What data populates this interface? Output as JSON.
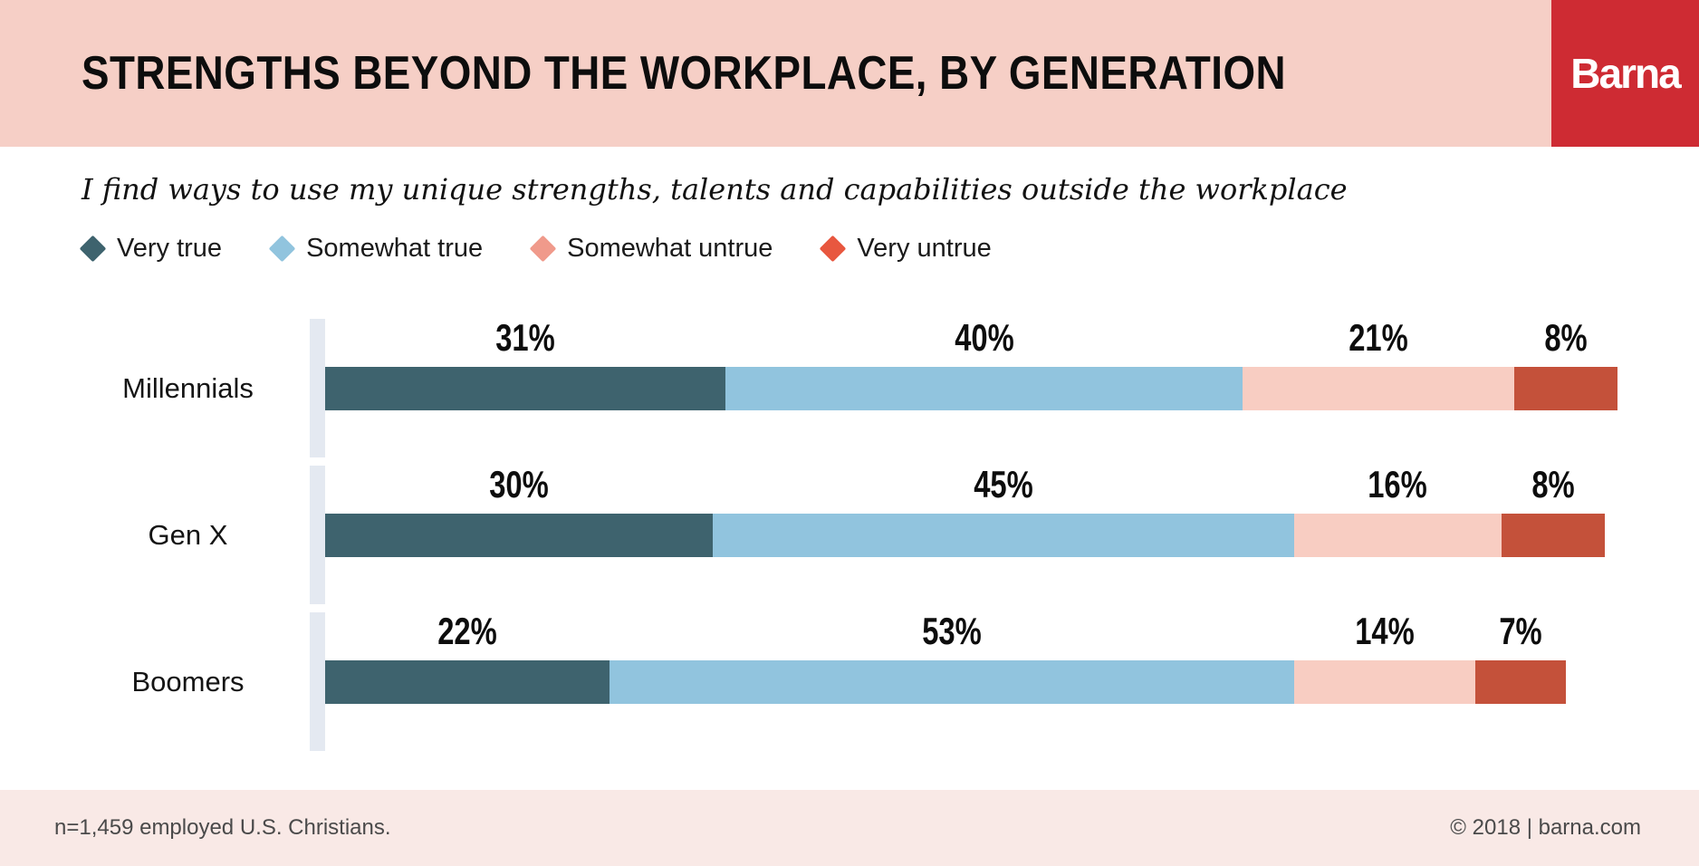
{
  "header": {
    "title": "STRENGTHS BEYOND THE WORKPLACE, BY GENERATION",
    "logo_text": "Barna",
    "bg_color": "#f6cfc6",
    "logo_bg_color": "#ce2b33"
  },
  "subtitle": "I find ways to use my unique strengths, talents and capabilities outside the workplace",
  "legend": [
    {
      "label": "Very true",
      "color": "#3e636e"
    },
    {
      "label": "Somewhat true",
      "color": "#91c4de"
    },
    {
      "label": "Somewhat untrue",
      "color": "#f09a8b"
    },
    {
      "label": "Very untrue",
      "color": "#e8573f"
    }
  ],
  "chart_data": {
    "type": "bar",
    "stacked": true,
    "orientation": "horizontal",
    "title": "Strengths Beyond the Workplace, by Generation",
    "categories": [
      "Millennials",
      "Gen X",
      "Boomers"
    ],
    "series": [
      {
        "name": "Very true",
        "color": "#3e636e",
        "values": [
          31,
          30,
          22
        ]
      },
      {
        "name": "Somewhat true",
        "color": "#91c4de",
        "values": [
          40,
          45,
          53
        ]
      },
      {
        "name": "Somewhat untrue",
        "color": "#f8cdc2",
        "values": [
          21,
          16,
          14
        ]
      },
      {
        "name": "Very untrue",
        "color": "#c4513a",
        "values": [
          8,
          8,
          7
        ]
      }
    ],
    "rows": [
      {
        "label": "Millennials",
        "values": [
          31,
          40,
          21,
          8
        ],
        "display": [
          "31%",
          "40%",
          "21%",
          "8%"
        ]
      },
      {
        "label": "Gen X",
        "values": [
          30,
          45,
          16,
          8
        ],
        "display": [
          "30%",
          "45%",
          "16%",
          "8%"
        ]
      },
      {
        "label": "Boomers",
        "values": [
          22,
          53,
          14,
          7
        ],
        "display": [
          "22%",
          "53%",
          "14%",
          "7%"
        ]
      }
    ],
    "xlim": [
      0,
      100
    ],
    "value_suffix": "%",
    "grid": false,
    "legend_position": "top",
    "track_color": "#e4e9f1"
  },
  "footer": {
    "left": "n=1,459 employed U.S. Christians.",
    "right": "© 2018 | barna.com"
  }
}
